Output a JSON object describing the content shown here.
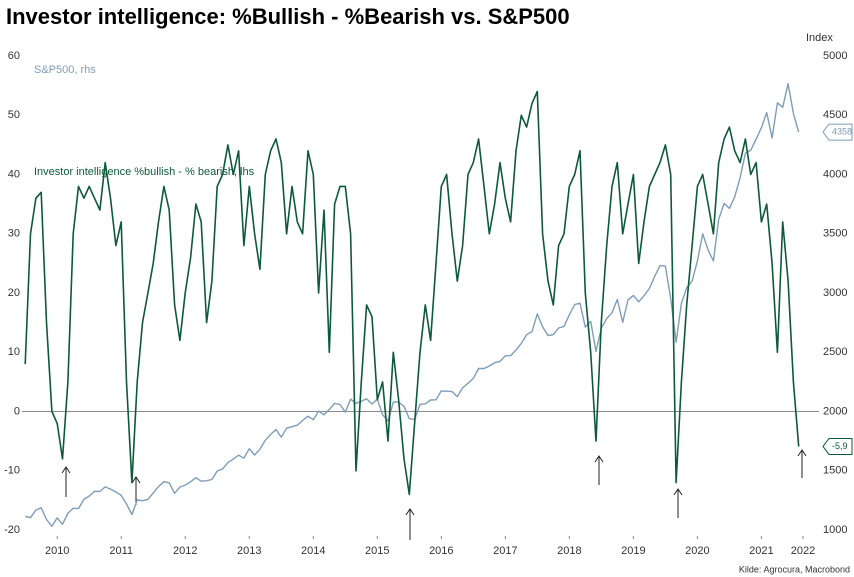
{
  "chart_data": {
    "type": "line",
    "title": "Investor intelligence: %Bullish - %Bearish vs. S&P500",
    "y2_label": "Index",
    "source": "Kilde: Agrocura, Macrobond",
    "x": [
      2010,
      2010.083,
      2010.167,
      2010.25,
      2010.333,
      2010.417,
      2010.5,
      2010.583,
      2010.667,
      2010.75,
      2010.833,
      2010.917,
      2011,
      2011.083,
      2011.167,
      2011.25,
      2011.333,
      2011.417,
      2011.5,
      2011.583,
      2011.667,
      2011.75,
      2011.833,
      2011.917,
      2012,
      2012.083,
      2012.167,
      2012.25,
      2012.333,
      2012.417,
      2012.5,
      2012.583,
      2012.667,
      2012.75,
      2012.833,
      2012.917,
      2013,
      2013.083,
      2013.167,
      2013.25,
      2013.333,
      2013.417,
      2013.5,
      2013.583,
      2013.667,
      2013.75,
      2013.833,
      2013.917,
      2014,
      2014.083,
      2014.167,
      2014.25,
      2014.333,
      2014.417,
      2014.5,
      2014.583,
      2014.667,
      2014.75,
      2014.833,
      2014.917,
      2015,
      2015.083,
      2015.167,
      2015.25,
      2015.333,
      2015.417,
      2015.5,
      2015.583,
      2015.667,
      2015.75,
      2015.833,
      2015.917,
      2016,
      2016.083,
      2016.167,
      2016.25,
      2016.333,
      2016.417,
      2016.5,
      2016.583,
      2016.667,
      2016.75,
      2016.833,
      2016.917,
      2017,
      2017.083,
      2017.167,
      2017.25,
      2017.333,
      2017.417,
      2017.5,
      2017.583,
      2017.667,
      2017.75,
      2017.833,
      2017.917,
      2018,
      2018.083,
      2018.167,
      2018.25,
      2018.333,
      2018.417,
      2018.5,
      2018.583,
      2018.667,
      2018.75,
      2018.833,
      2018.917,
      2019,
      2019.083,
      2019.167,
      2019.25,
      2019.333,
      2019.417,
      2019.5,
      2019.583,
      2019.667,
      2019.75,
      2019.833,
      2019.917,
      2020,
      2020.083,
      2020.167,
      2020.25,
      2020.333,
      2020.417,
      2020.5,
      2020.583,
      2020.667,
      2020.75,
      2020.833,
      2020.917,
      2021,
      2021.083,
      2021.167,
      2021.25,
      2021.333,
      2021.417,
      2021.5,
      2021.583,
      2021.667,
      2021.75,
      2021.833,
      2021.917,
      2022,
      2022.083
    ],
    "series": [
      {
        "name": "S&P500, rhs",
        "color": "#7f9db8",
        "axis": "y2",
        "values": [
          1115,
          1104,
          1169,
          1187,
          1089,
          1031,
          1102,
          1049,
          1141,
          1183,
          1181,
          1258,
          1286,
          1327,
          1326,
          1364,
          1345,
          1321,
          1292,
          1219,
          1131,
          1253,
          1247,
          1258,
          1312,
          1366,
          1408,
          1398,
          1310,
          1362,
          1379,
          1407,
          1441,
          1412,
          1416,
          1426,
          1498,
          1515,
          1569,
          1598,
          1631,
          1606,
          1686,
          1633,
          1682,
          1757,
          1806,
          1848,
          1783,
          1859,
          1872,
          1884,
          1924,
          1960,
          1931,
          2003,
          1972,
          2018,
          2068,
          2059,
          1995,
          2105,
          2068,
          2086,
          2107,
          2063,
          2104,
          1972,
          1920,
          2079,
          2080,
          2044,
          1940,
          1932,
          2060,
          2065,
          2097,
          2099,
          2174,
          2171,
          2168,
          2126,
          2199,
          2239,
          2279,
          2364,
          2363,
          2384,
          2412,
          2423,
          2470,
          2472,
          2519,
          2575,
          2648,
          2674,
          2824,
          2714,
          2641,
          2648,
          2705,
          2718,
          2816,
          2902,
          2914,
          2712,
          2760,
          2507,
          2704,
          2784,
          2834,
          2946,
          2752,
          2942,
          2980,
          2926,
          2977,
          3038,
          3141,
          3231,
          3226,
          2954,
          2585,
          2912,
          3044,
          3100,
          3271,
          3500,
          3363,
          3270,
          3622,
          3756,
          3714,
          3811,
          3973,
          4181,
          4204,
          4298,
          4395,
          4523,
          4308,
          4605,
          4567,
          4766,
          4516,
          4358
        ]
      },
      {
        "name": "Investor intelligence %bullish - % bearish, lhs",
        "color": "#0d5a3a",
        "values": [
          8,
          30,
          36,
          37,
          15,
          0,
          -2,
          -8,
          5,
          30,
          38,
          36,
          38,
          36,
          34,
          42,
          36,
          28,
          32,
          5,
          -12,
          5,
          15,
          20,
          25,
          32,
          38,
          34,
          18,
          12,
          20,
          26,
          35,
          32,
          15,
          22,
          38,
          40,
          45,
          40,
          44,
          28,
          38,
          30,
          24,
          40,
          44,
          46,
          42,
          30,
          38,
          32,
          30,
          44,
          40,
          20,
          34,
          10,
          35,
          38,
          38,
          30,
          -10,
          5,
          18,
          16,
          2,
          5,
          -5,
          10,
          2,
          -8,
          -14,
          -2,
          10,
          18,
          12,
          25,
          38,
          40,
          30,
          22,
          28,
          40,
          42,
          46,
          38,
          30,
          35,
          42,
          36,
          32,
          44,
          50,
          48,
          52,
          54,
          30,
          22,
          18,
          28,
          30,
          38,
          40,
          44,
          20,
          10,
          -5,
          15,
          28,
          38,
          42,
          30,
          35,
          40,
          25,
          32,
          38,
          40,
          42,
          45,
          40,
          -12,
          5,
          18,
          28,
          38,
          40,
          35,
          30,
          42,
          46,
          48,
          44,
          42,
          46,
          40,
          42,
          32,
          35,
          25,
          10,
          32,
          22,
          5,
          -5.9
        ],
        "value_labels": [
          null,
          null,
          null,
          null,
          null,
          null,
          null,
          null,
          null,
          null,
          null,
          null,
          null,
          null,
          null,
          null,
          null,
          null,
          null,
          null,
          null,
          null,
          null,
          null,
          null,
          null,
          null,
          null,
          null,
          null,
          null,
          null,
          null,
          null,
          null,
          null,
          null,
          null,
          null,
          null,
          null,
          null,
          null,
          null,
          null,
          null,
          null,
          null,
          null,
          null,
          null,
          null,
          null,
          null,
          null,
          null,
          null,
          null,
          null,
          null,
          null,
          null,
          null,
          null,
          null,
          null,
          null,
          null,
          null,
          null,
          null,
          null,
          null,
          null,
          null,
          null,
          null,
          null,
          null,
          null,
          null,
          null,
          null,
          null,
          null,
          null,
          null,
          null,
          null,
          null,
          null,
          null,
          null,
          null,
          null,
          null,
          null,
          null,
          null,
          null,
          null,
          null,
          null,
          null,
          null,
          null,
          null,
          null,
          null,
          null,
          null,
          null,
          null,
          null,
          null,
          null,
          null,
          null,
          null,
          null,
          null,
          null,
          null,
          null,
          null,
          null,
          null,
          null,
          null,
          null,
          null,
          null,
          null,
          null,
          null,
          null,
          null,
          null,
          null,
          null,
          null,
          null,
          null,
          null,
          null,
          "-5,9"
        ]
      }
    ],
    "xlim": [
      2009.95,
      2022.4
    ],
    "xticks": [
      {
        "value": 2010.5,
        "label": "2010"
      },
      {
        "value": 2011.5,
        "label": "2011"
      },
      {
        "value": 2012.5,
        "label": "2012"
      },
      {
        "value": 2013.5,
        "label": "2013"
      },
      {
        "value": 2014.5,
        "label": "2014"
      },
      {
        "value": 2015.5,
        "label": "2015"
      },
      {
        "value": 2016.5,
        "label": "2016"
      },
      {
        "value": 2017.5,
        "label": "2017"
      },
      {
        "value": 2018.5,
        "label": "2018"
      },
      {
        "value": 2019.5,
        "label": "2019"
      },
      {
        "value": 2020.5,
        "label": "2020"
      },
      {
        "value": 2021.5,
        "label": "2021"
      },
      {
        "value": 2022.15,
        "label": "2022"
      }
    ],
    "ylim": [
      -20,
      60
    ],
    "yticks": [
      -20,
      -10,
      0,
      10,
      20,
      30,
      40,
      50,
      60
    ],
    "y2lim": [
      1000,
      5000
    ],
    "y2ticks": [
      1000,
      1500,
      2000,
      2500,
      3000,
      3500,
      4000,
      4500,
      5000
    ],
    "zero_line": true
  }
}
